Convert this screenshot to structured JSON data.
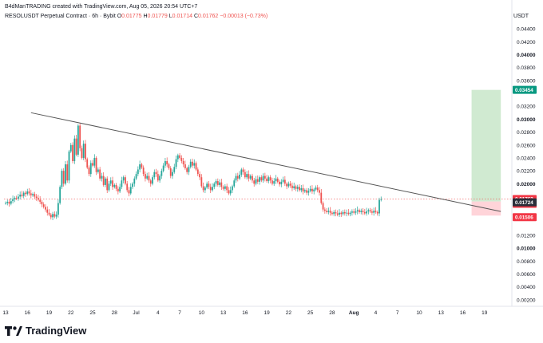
{
  "header": {
    "publisher": "B4dManTRADING created with TradingView.com, Aug 05, 2026 20:54 UTC+7",
    "symbol_line": "RESOLUSDT Perpetual Contract · 6h · Bybit",
    "ohlc": {
      "o_label": "O",
      "o": "0.01775",
      "h_label": "H",
      "h": "0.01779",
      "l_label": "L",
      "l": "0.01714",
      "c_label": "C",
      "c": "0.01762",
      "change": "−0.00013 (−0.73%)"
    }
  },
  "brand": {
    "name": "TradingView"
  },
  "colors": {
    "up": "#26a69a",
    "down": "#ef5350",
    "trendline": "#555555",
    "target_zone": "#c8e6c9",
    "stop_zone": "#ffcdd2",
    "target_label": "#089981",
    "price_label": "#f23645"
  },
  "chart_data": {
    "type": "candlestick",
    "currency": "USDT",
    "ylim": [
      0.001,
      0.0455
    ],
    "y_ticks": [
      {
        "v": 0.002,
        "t": "0.00200"
      },
      {
        "v": 0.004,
        "t": "0.00400"
      },
      {
        "v": 0.006,
        "t": "0.00600"
      },
      {
        "v": 0.008,
        "t": "0.00800"
      },
      {
        "v": 0.01,
        "t": "0.01000",
        "bold": true
      },
      {
        "v": 0.012,
        "t": "0.01200"
      },
      {
        "v": 0.02,
        "t": "0.02000",
        "bold": true
      },
      {
        "v": 0.022,
        "t": "0.02200"
      },
      {
        "v": 0.024,
        "t": "0.02400"
      },
      {
        "v": 0.026,
        "t": "0.02600"
      },
      {
        "v": 0.028,
        "t": "0.02800"
      },
      {
        "v": 0.03,
        "t": "0.03000",
        "bold": true
      },
      {
        "v": 0.032,
        "t": "0.03200"
      },
      {
        "v": 0.036,
        "t": "0.03600"
      },
      {
        "v": 0.038,
        "t": "0.03800"
      },
      {
        "v": 0.04,
        "t": "0.04000",
        "bold": true
      },
      {
        "v": 0.042,
        "t": "0.04200"
      },
      {
        "v": 0.044,
        "t": "0.04400"
      }
    ],
    "x_ticks": [
      {
        "i": 0,
        "t": "13"
      },
      {
        "i": 12,
        "t": "16"
      },
      {
        "i": 24,
        "t": "19"
      },
      {
        "i": 36,
        "t": "22"
      },
      {
        "i": 48,
        "t": "25"
      },
      {
        "i": 60,
        "t": "28"
      },
      {
        "i": 72,
        "t": "Jul"
      },
      {
        "i": 84,
        "t": "4"
      },
      {
        "i": 96,
        "t": "7"
      },
      {
        "i": 108,
        "t": "10"
      },
      {
        "i": 120,
        "t": "13"
      },
      {
        "i": 132,
        "t": "16"
      },
      {
        "i": 144,
        "t": "19"
      },
      {
        "i": 156,
        "t": "22"
      },
      {
        "i": 168,
        "t": "25"
      },
      {
        "i": 180,
        "t": "28"
      },
      {
        "i": 192,
        "t": "Aug",
        "bold": true
      },
      {
        "i": 204,
        "t": "4"
      },
      {
        "i": 216,
        "t": "7"
      },
      {
        "i": 228,
        "t": "10"
      },
      {
        "i": 240,
        "t": "13"
      },
      {
        "i": 252,
        "t": "16"
      },
      {
        "i": 264,
        "t": "19"
      }
    ],
    "closes": [
      0.017,
      0.0172,
      0.0169,
      0.0173,
      0.0176,
      0.0178,
      0.0177,
      0.018,
      0.0183,
      0.0181,
      0.0186,
      0.0184,
      0.0188,
      0.0185,
      0.0182,
      0.0184,
      0.018,
      0.0178,
      0.0175,
      0.0172,
      0.0168,
      0.0164,
      0.016,
      0.0155,
      0.0152,
      0.0148,
      0.0153,
      0.0149,
      0.0152,
      0.017,
      0.0195,
      0.022,
      0.02,
      0.023,
      0.0205,
      0.025,
      0.026,
      0.0235,
      0.027,
      0.0245,
      0.029,
      0.0255,
      0.024,
      0.0262,
      0.0238,
      0.0225,
      0.0215,
      0.0232,
      0.0228,
      0.024,
      0.0218,
      0.0222,
      0.0208,
      0.0212,
      0.0198,
      0.0208,
      0.019,
      0.02,
      0.0205,
      0.0195,
      0.0198,
      0.0192,
      0.0188,
      0.0195,
      0.0205,
      0.021,
      0.02,
      0.019,
      0.0185,
      0.0195,
      0.02,
      0.0208,
      0.0215,
      0.0222,
      0.023,
      0.0225,
      0.0215,
      0.0208,
      0.0212,
      0.0205,
      0.02,
      0.021,
      0.0218,
      0.0215,
      0.0205,
      0.0212,
      0.022,
      0.0228,
      0.0235,
      0.023,
      0.0224,
      0.0212,
      0.0218,
      0.0226,
      0.0238,
      0.0244,
      0.024,
      0.0235,
      0.023,
      0.0224,
      0.0218,
      0.0226,
      0.0234,
      0.0228,
      0.0232,
      0.0222,
      0.0215,
      0.021,
      0.0196,
      0.019,
      0.0194,
      0.02,
      0.0195,
      0.019,
      0.0195,
      0.02,
      0.0204,
      0.0198,
      0.0202,
      0.0195,
      0.0192,
      0.0196,
      0.019,
      0.0185,
      0.019,
      0.0196,
      0.0205,
      0.0212,
      0.0208,
      0.0214,
      0.0222,
      0.0218,
      0.021,
      0.0215,
      0.0208,
      0.0212,
      0.0205,
      0.02,
      0.0207,
      0.0203,
      0.021,
      0.0205,
      0.0212,
      0.0208,
      0.0204,
      0.021,
      0.0205,
      0.02,
      0.0204,
      0.0208,
      0.0203,
      0.0199,
      0.0203,
      0.0206,
      0.02,
      0.0196,
      0.02,
      0.0197,
      0.0193,
      0.0196,
      0.0192,
      0.0195,
      0.019,
      0.0193,
      0.0188,
      0.019,
      0.0186,
      0.0189,
      0.0192,
      0.0188,
      0.0191,
      0.0194,
      0.019,
      0.0186,
      0.017,
      0.016,
      0.0158,
      0.0156,
      0.0158,
      0.0155,
      0.0153,
      0.0156,
      0.0154,
      0.0152,
      0.0155,
      0.0153,
      0.0156,
      0.0154,
      0.0155,
      0.0153,
      0.0155,
      0.0157,
      0.0155,
      0.0157,
      0.0159,
      0.0156,
      0.0158,
      0.0156,
      0.0154,
      0.0157,
      0.0159,
      0.0157,
      0.0155,
      0.0158,
      0.0156,
      0.0154,
      0.0175,
      0.0176
    ],
    "trendline": {
      "from": {
        "i": 14,
        "v": 0.031
      },
      "to": {
        "i": 273,
        "v": 0.0157
      }
    },
    "position": {
      "start_i": 256,
      "end_i": 273,
      "entry": 0.01724,
      "target": 0.03454,
      "stop": 0.01506
    },
    "price_labels": [
      {
        "v": 0.03454,
        "t": "0.03454",
        "kind": "target"
      },
      {
        "v": 0.01762,
        "t": "0.01762",
        "kind": "price"
      },
      {
        "v": 0.01724,
        "t": "0.01724",
        "kind": "entry"
      },
      {
        "v": 0.01506,
        "t": "0.01506",
        "kind": "stop"
      }
    ],
    "countdown": "04:05:58",
    "last_price": 0.01762
  }
}
